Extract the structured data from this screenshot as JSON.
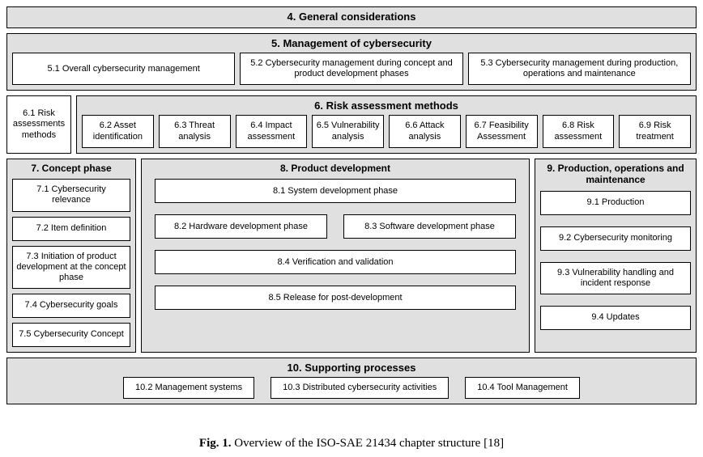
{
  "colors": {
    "section_bg": "#e0e0e0",
    "box_bg": "#ffffff",
    "border": "#000000",
    "text": "#000000"
  },
  "font": {
    "family": "Arial",
    "title_size_pt": 13,
    "col_title_size_pt": 12,
    "body_size_pt": 11,
    "caption_family": "Georgia"
  },
  "s4": {
    "title": "4. General considerations"
  },
  "s5": {
    "title": "5. Management of cybersecurity",
    "items": [
      "5.1 Overall cybersecurity management",
      "5.2 Cybersecurity management during concept and product development phases",
      "5.3 Cybersecurity management during production, operations and maintenance"
    ]
  },
  "s6": {
    "left": "6.1 Risk assessments methods",
    "title": "6. Risk assessment methods",
    "items": [
      "6.2  Asset identification",
      "6.3 Threat analysis",
      "6.4 Impact assessment",
      "6.5 Vulnerability analysis",
      "6.6 Attack analysis",
      "6.7 Feasibility Assessment",
      "6.8 Risk assessment",
      "6.9 Risk treatment"
    ]
  },
  "s7": {
    "title": "7. Concept phase",
    "items": [
      "7.1 Cybersecurity relevance",
      "7.2 Item definition",
      "7.3 Initiation of product development at the concept phase",
      "7.4 Cybersecurity goals",
      "7.5 Cybersecurity Concept"
    ]
  },
  "s8": {
    "title": "8. Product development",
    "r1": "8.1 System development phase",
    "r2a": "8.2 Hardware development phase",
    "r2b": "8.3 Software development phase",
    "r3": "8.4 Verification and validation",
    "r4": "8.5 Release for post-development"
  },
  "s9": {
    "title": "9. Production, operations and maintenance",
    "items": [
      "9.1 Production",
      "9.2 Cybersecurity monitoring",
      "9.3 Vulnerability handling and incident response",
      "9.4 Updates"
    ]
  },
  "s10": {
    "title": "10. Supporting processes",
    "items": [
      "10.2 Management systems",
      "10.3 Distributed cybersecurity activities",
      "10.4 Tool Management"
    ]
  },
  "caption": {
    "label": "Fig. 1.",
    "text": " Overview of the ISO-SAE 21434 chapter structure [18]"
  }
}
